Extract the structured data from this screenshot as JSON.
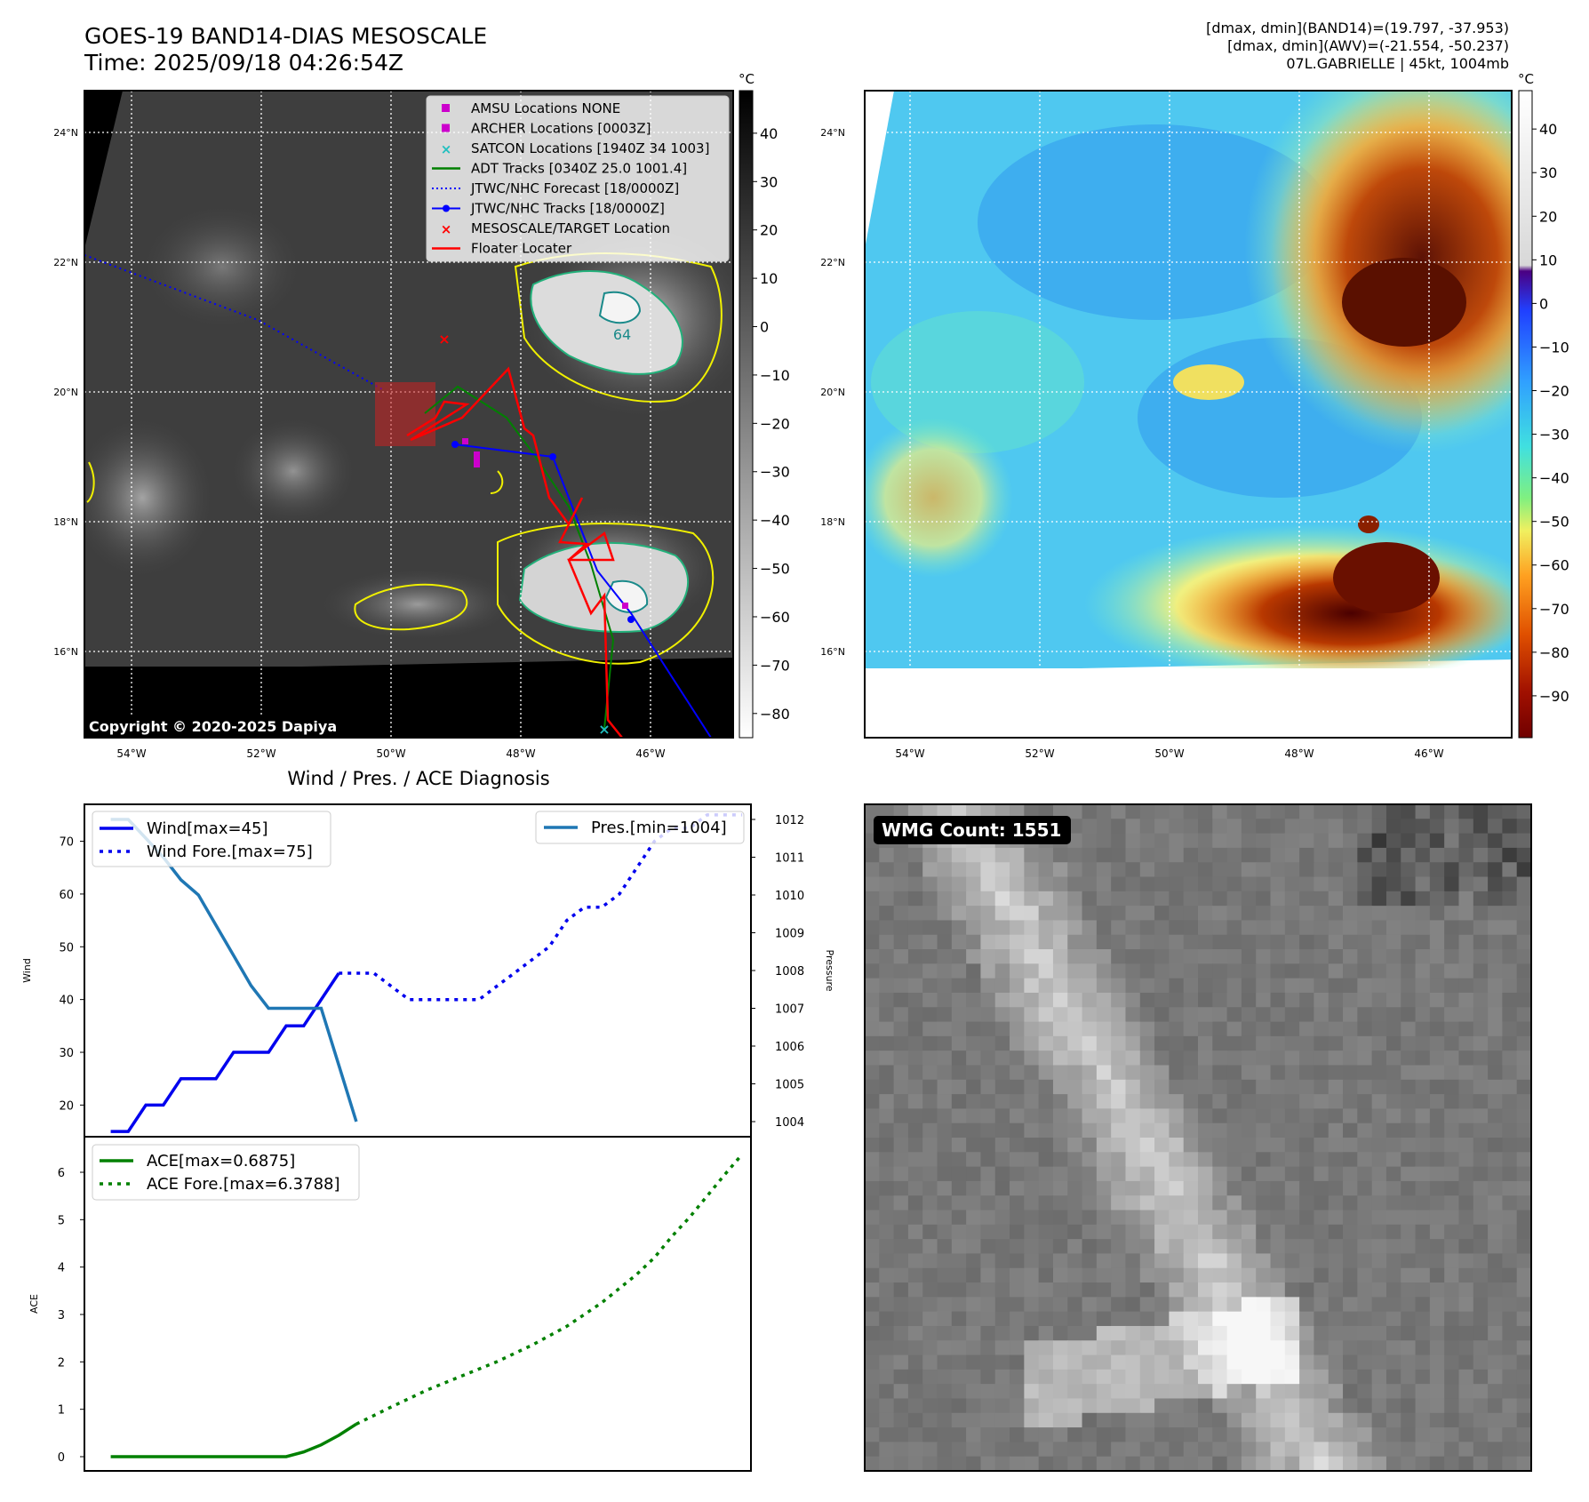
{
  "header": {
    "title_line1": "GOES-19 BAND14-DIAS MESOSCALE",
    "title_line2": "Time: 2025/09/18 04:26:54Z",
    "info_line1": "[dmax, dmin](BAND14)=(19.797, -37.953)",
    "info_line2": "[dmax, dmin](AWV)=(-21.554, -50.237)",
    "info_line3": "07L.GABRIELLE | 45kt, 1004mb"
  },
  "map_left": {
    "lat_labels": [
      "24°N",
      "22°N",
      "20°N",
      "18°N",
      "16°N"
    ],
    "lon_labels": [
      "54°W",
      "52°W",
      "50°W",
      "48°W",
      "46°W"
    ],
    "copyright": "Copyright © 2020-2025 Dapiya",
    "contour_label": "64",
    "legend": [
      {
        "label": "AMSU Locations NONE",
        "color": "#cc00cc",
        "marker": "square"
      },
      {
        "label": "ARCHER Locations [0003Z]",
        "color": "#cc00cc",
        "marker": "square"
      },
      {
        "label": "SATCON Locations [1940Z 34 1003]",
        "color": "#1fbfbf",
        "marker": "x"
      },
      {
        "label": "ADT Tracks [0340Z 25.0 1001.4]",
        "color": "#008000",
        "marker": "line"
      },
      {
        "label": "JTWC/NHC Forecast [18/0000Z]",
        "color": "#0000ff",
        "marker": "dotted"
      },
      {
        "label": "JTWC/NHC Tracks [18/0000Z]",
        "color": "#0000ff",
        "marker": "line-dot"
      },
      {
        "label": "MESOSCALE/TARGET Location",
        "color": "#ff0000",
        "marker": "x"
      },
      {
        "label": "Floater Locater",
        "color": "#ff0000",
        "marker": "line"
      }
    ],
    "colorbar": {
      "unit": "°C",
      "ticks": [
        "40",
        "30",
        "20",
        "10",
        "0",
        "−10",
        "−20",
        "−30",
        "−40",
        "−50",
        "−60",
        "−70",
        "−80"
      ]
    }
  },
  "map_right": {
    "lat_labels": [
      "24°N",
      "22°N",
      "20°N",
      "18°N",
      "16°N"
    ],
    "lon_labels": [
      "54°W",
      "52°W",
      "50°W",
      "48°W",
      "46°W"
    ],
    "colorbar": {
      "unit": "°C",
      "ticks": [
        "40",
        "30",
        "20",
        "10",
        "0",
        "−10",
        "−20",
        "−30",
        "−40",
        "−50",
        "−60",
        "−70",
        "−80",
        "−90"
      ]
    }
  },
  "wmg": {
    "label": "WMG Count: 1551"
  },
  "chart_data": [
    {
      "type": "line",
      "title": "Wind / Pres. / ACE Diagnosis",
      "ylabel": "Wind",
      "ylabel_right": "Pressure",
      "ylim": [
        14,
        77
      ],
      "ylim_right": [
        1003.6,
        1012.4
      ],
      "yticks": [
        20,
        30,
        40,
        50,
        60,
        70
      ],
      "yticks_right": [
        1004,
        1005,
        1006,
        1007,
        1008,
        1009,
        1010,
        1011,
        1012
      ],
      "x": [
        0,
        1,
        2,
        3,
        4,
        5,
        6,
        7,
        8,
        9,
        10,
        11,
        12,
        13,
        14,
        15,
        16,
        17,
        18,
        19,
        20,
        21,
        22,
        23,
        24,
        25,
        26,
        27,
        28,
        29,
        30,
        31,
        32,
        33,
        34,
        35,
        36
      ],
      "xlim": [
        -1.5,
        36.5
      ],
      "series": [
        {
          "name": "Wind[max=45]",
          "style": "solid",
          "color": "#0000ee",
          "axis": "left",
          "x": [
            0,
            1,
            2,
            3,
            4,
            5,
            6,
            7,
            8,
            9,
            10,
            11,
            12,
            13
          ],
          "values": [
            15,
            15,
            20,
            20,
            25,
            25,
            25,
            30,
            30,
            30,
            35,
            35,
            40,
            45
          ]
        },
        {
          "name": "Wind Fore.[max=75]",
          "style": "dotted",
          "color": "#0000ee",
          "axis": "left",
          "x": [
            13,
            14,
            15,
            16,
            17,
            18,
            19,
            20,
            21,
            22,
            23,
            24,
            25,
            26,
            27,
            28,
            29,
            30,
            31,
            32,
            33,
            34,
            35,
            36
          ],
          "values": [
            45,
            45,
            45,
            42.5,
            40,
            40,
            40,
            40,
            40,
            42.5,
            45,
            47.5,
            50,
            55,
            57.5,
            57.5,
            60,
            65,
            70,
            72.5,
            72.5,
            75,
            75,
            75
          ]
        },
        {
          "name": "Pres.[min=1004]",
          "style": "solid",
          "color": "#1f77b4",
          "axis": "right",
          "x": [
            0,
            1,
            2,
            3,
            4,
            5,
            6,
            7,
            8,
            9,
            10,
            11,
            12,
            13,
            14
          ],
          "values": [
            1012,
            1012,
            1011.5,
            1011,
            1010.4,
            1010,
            1009.2,
            1008.4,
            1007.6,
            1007,
            1007,
            1007,
            1007,
            1005.5,
            1004
          ]
        }
      ],
      "legend_left": "upper left",
      "legend_right": "upper right"
    },
    {
      "type": "line",
      "ylabel": "ACE",
      "ylim": [
        -0.3,
        6.75
      ],
      "yticks": [
        0,
        1,
        2,
        3,
        4,
        5,
        6
      ],
      "xlim": [
        -1.5,
        36.5
      ],
      "series": [
        {
          "name": "ACE[max=0.6875]",
          "style": "solid",
          "color": "#008000",
          "x": [
            0,
            2,
            4,
            6,
            8,
            10,
            11,
            12,
            13,
            14
          ],
          "values": [
            0,
            0,
            0,
            0,
            0,
            0,
            0.1,
            0.25,
            0.45,
            0.6875
          ]
        },
        {
          "name": "ACE Fore.[max=6.3788]",
          "style": "dotted",
          "color": "#008000",
          "x": [
            14,
            16,
            18,
            20,
            22,
            24,
            26,
            28,
            30,
            31,
            32,
            33,
            34,
            35,
            36
          ],
          "values": [
            0.6875,
            1.05,
            1.4,
            1.7,
            2.0,
            2.35,
            2.75,
            3.25,
            3.85,
            4.2,
            4.65,
            5.05,
            5.5,
            5.95,
            6.3788
          ]
        }
      ],
      "legend": "upper left"
    }
  ]
}
